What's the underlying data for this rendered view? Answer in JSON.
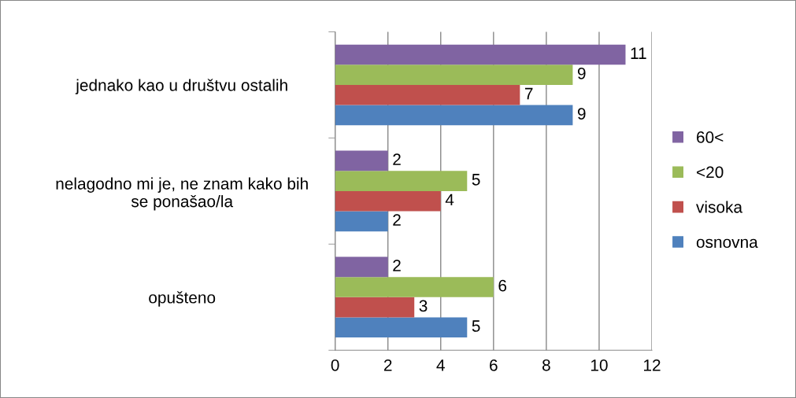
{
  "chart_data": {
    "type": "bar",
    "orientation": "horizontal",
    "categories": [
      "jednako kao u društvu ostalih",
      "nelagodno mi je, ne znam kako bih\nse ponašao/la",
      "opušteno"
    ],
    "series": [
      {
        "name": "osnovna",
        "color": "#4f81bd",
        "values": [
          9,
          2,
          5
        ]
      },
      {
        "name": "visoka",
        "color": "#c0504d",
        "values": [
          7,
          4,
          3
        ]
      },
      {
        "name": "<20",
        "color": "#9bbb59",
        "values": [
          9,
          5,
          6
        ]
      },
      {
        "name": "60<",
        "color": "#8064a2",
        "values": [
          11,
          2,
          2
        ]
      }
    ],
    "xlim": [
      0,
      12
    ],
    "xticks": [
      0,
      2,
      4,
      6,
      8,
      10,
      12
    ],
    "grid": "x",
    "legend": "right",
    "data_labels": true
  }
}
